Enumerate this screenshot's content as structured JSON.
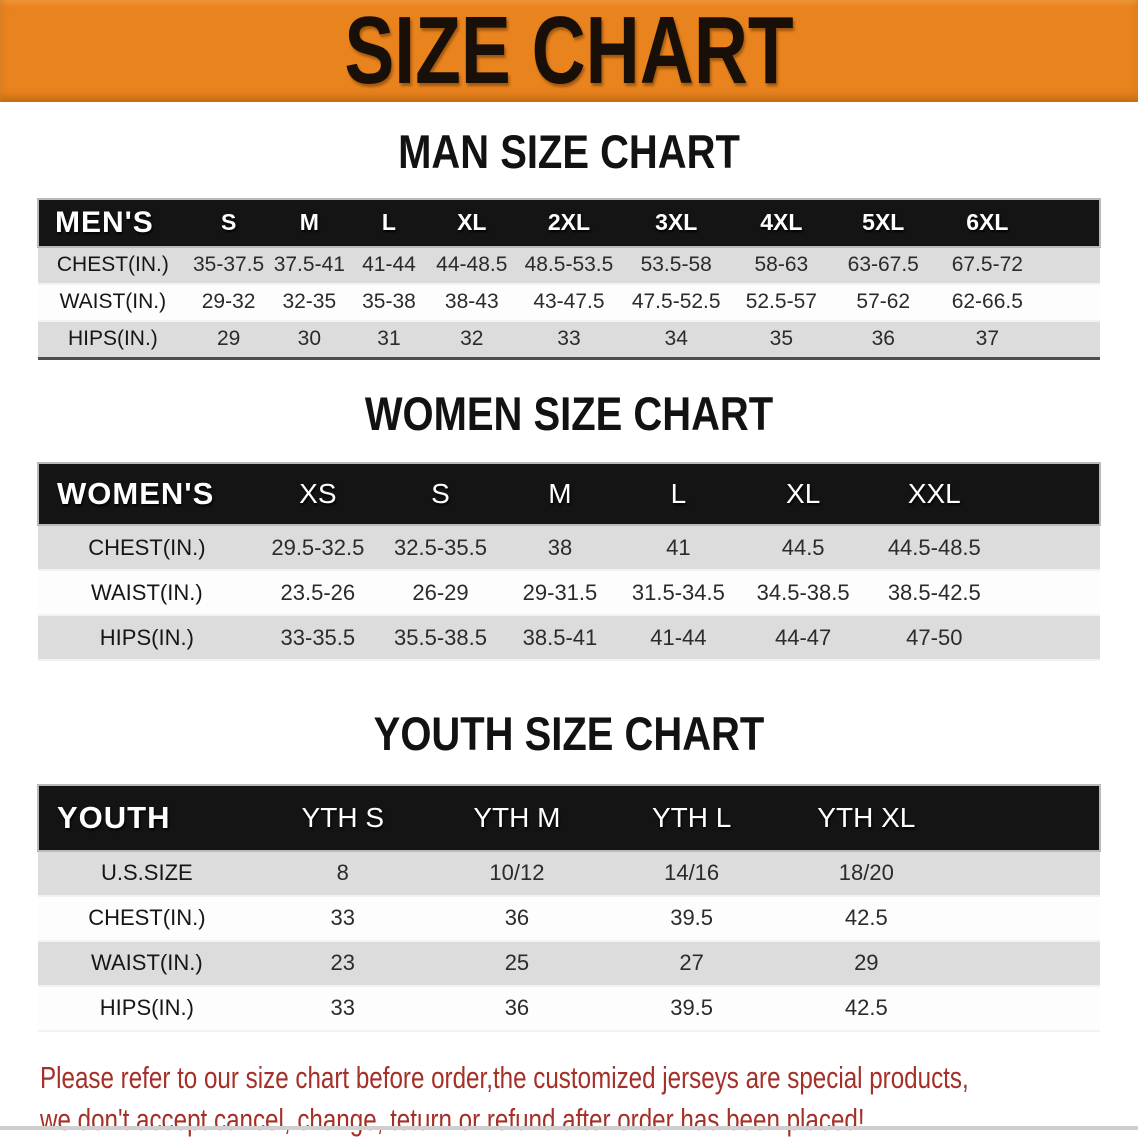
{
  "banner": {
    "title": "SIZE CHART",
    "background_color": "#E9831E",
    "title_color": "#181008"
  },
  "sections": [
    {
      "id": "men",
      "heading": "MAN SIZE CHART",
      "table": {
        "header": [
          "MEN'S",
          "S",
          "M",
          "L",
          "XL",
          "2XL",
          "3XL",
          "4XL",
          "5XL",
          "6XL"
        ],
        "rows": [
          {
            "label": "CHEST(IN.)",
            "values": [
              "35-37.5",
              "37.5-41",
              "41-44",
              "44-48.5",
              "48.5-53.5",
              "53.5-58",
              "58-63",
              "63-67.5",
              "67.5-72"
            ]
          },
          {
            "label": "WAIST(IN.)",
            "values": [
              "29-32",
              "32-35",
              "35-38",
              "38-43",
              "43-47.5",
              "47.5-52.5",
              "52.5-57",
              "57-62",
              "62-66.5"
            ]
          },
          {
            "label": "HIPS(IN.)",
            "values": [
              "29",
              "30",
              "31",
              "32",
              "33",
              "34",
              "35",
              "36",
              "37"
            ]
          }
        ]
      }
    },
    {
      "id": "women",
      "heading": "WOMEN SIZE CHART",
      "table": {
        "header": [
          "WOMEN'S",
          "XS",
          "S",
          "M",
          "L",
          "XL",
          "XXL"
        ],
        "rows": [
          {
            "label": "CHEST(IN.)",
            "values": [
              "29.5-32.5",
              "32.5-35.5",
              "38",
              "41",
              "44.5",
              "44.5-48.5"
            ]
          },
          {
            "label": "WAIST(IN.)",
            "values": [
              "23.5-26",
              "26-29",
              "29-31.5",
              "31.5-34.5",
              "34.5-38.5",
              "38.5-42.5"
            ]
          },
          {
            "label": "HIPS(IN.)",
            "values": [
              "33-35.5",
              "35.5-38.5",
              "38.5-41",
              "41-44",
              "44-47",
              "47-50"
            ]
          }
        ]
      }
    },
    {
      "id": "youth",
      "heading": "YOUTH SIZE CHART",
      "table": {
        "header": [
          "YOUTH",
          "YTH S",
          "YTH M",
          "YTH L",
          "YTH XL"
        ],
        "rows": [
          {
            "label": "U.S.SIZE",
            "values": [
              "8",
              "10/12",
              "14/16",
              "18/20"
            ]
          },
          {
            "label": "CHEST(IN.)",
            "values": [
              "33",
              "36",
              "39.5",
              "42.5"
            ]
          },
          {
            "label": "WAIST(IN.)",
            "values": [
              "23",
              "25",
              "27",
              "29"
            ]
          },
          {
            "label": "HIPS(IN.)",
            "values": [
              "33",
              "36",
              "39.5",
              "42.5"
            ]
          }
        ]
      }
    }
  ],
  "footer": {
    "line1": "Please refer to our size chart before order,the customized jerseys are special products,",
    "line2": "we don't accept cancel, change, teturn or refund after order has been placed!",
    "text_color": "#A53028"
  },
  "colors": {
    "header_bar": "#141414",
    "shaded_row": "#DCDCDC",
    "table_text": "#2B2B2B"
  }
}
